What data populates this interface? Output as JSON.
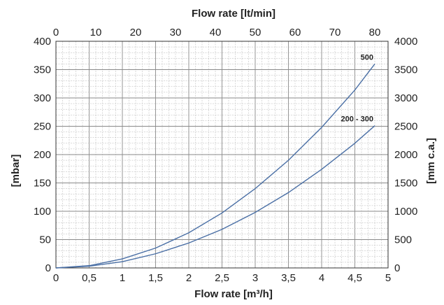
{
  "chart_data": {
    "type": "line",
    "x_bottom": {
      "label": "Flow rate [m³/h]",
      "range": [
        0,
        5
      ],
      "ticks": [
        "0",
        "0,5",
        "1",
        "1,5",
        "2",
        "2,5",
        "3",
        "3,5",
        "4",
        "4,5",
        "5"
      ],
      "tick_values": [
        0,
        0.5,
        1,
        1.5,
        2,
        2.5,
        3,
        3.5,
        4,
        4.5,
        5
      ]
    },
    "x_top": {
      "label": "Flow rate [lt/min]",
      "range": [
        0,
        83.333
      ],
      "ticks": [
        "0",
        "10",
        "20",
        "30",
        "40",
        "50",
        "60",
        "70",
        "80"
      ],
      "tick_values": [
        0,
        10,
        20,
        30,
        40,
        50,
        60,
        70,
        80
      ]
    },
    "y_left": {
      "label": "[mbar]",
      "range": [
        0,
        400
      ],
      "ticks": [
        "0",
        "50",
        "100",
        "150",
        "200",
        "250",
        "300",
        "350",
        "400"
      ],
      "tick_values": [
        0,
        50,
        100,
        150,
        200,
        250,
        300,
        350,
        400
      ]
    },
    "y_right": {
      "label": "[mm c.a.]",
      "range": [
        0,
        4000
      ],
      "ticks": [
        "0",
        "500",
        "1000",
        "1500",
        "2000",
        "2500",
        "3000",
        "3500",
        "4000"
      ],
      "tick_values": [
        0,
        500,
        1000,
        1500,
        2000,
        2500,
        3000,
        3500,
        4000
      ]
    },
    "grid": true,
    "series": [
      {
        "name": "500",
        "color": "#4a6fa5",
        "x": [
          0,
          0.5,
          1,
          1.5,
          2,
          2.5,
          3,
          3.5,
          4,
          4.5,
          4.8
        ],
        "y": [
          0,
          4,
          16,
          35,
          62,
          97,
          140,
          190,
          248,
          314,
          360
        ]
      },
      {
        "name": "200 - 300",
        "color": "#4a6fa5",
        "x": [
          0,
          0.5,
          1,
          1.5,
          2,
          2.5,
          3,
          3.5,
          4,
          4.5,
          4.8
        ],
        "y": [
          0,
          3,
          11,
          25,
          44,
          68,
          98,
          133,
          174,
          220,
          251
        ]
      }
    ]
  }
}
